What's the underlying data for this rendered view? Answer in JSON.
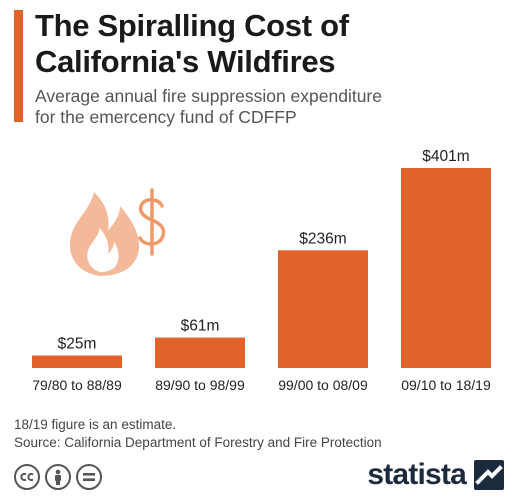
{
  "colors": {
    "accent": "#e2632a",
    "bar": "#e2632a",
    "icon": "#f4b89a"
  },
  "header": {
    "title_line1": "The Spiralling Cost of",
    "title_line2": "California's Wildfires",
    "subtitle_line1": "Average annual fire suppression expenditure",
    "subtitle_line2": "for the emercency fund of CDFFP"
  },
  "chart_data": {
    "type": "bar",
    "categories": [
      "79/80 to 88/89",
      "89/90 to 98/99",
      "99/00 to 08/09",
      "09/10 to 18/19"
    ],
    "values": [
      25,
      61,
      236,
      401
    ],
    "value_labels": [
      "$25m",
      "$61m",
      "$236m",
      "$401m"
    ],
    "unit": "$m",
    "ylim": [
      0,
      401
    ],
    "grid": false,
    "legend": "none"
  },
  "footer": {
    "note": "18/19 figure is an estimate.",
    "source": "Source: California Department of Forestry and Fire Protection",
    "brand": "statista"
  },
  "icons": [
    "fire-dollar-icon",
    "cc-icon",
    "by-icon",
    "nd-icon",
    "statista-logo-icon"
  ]
}
